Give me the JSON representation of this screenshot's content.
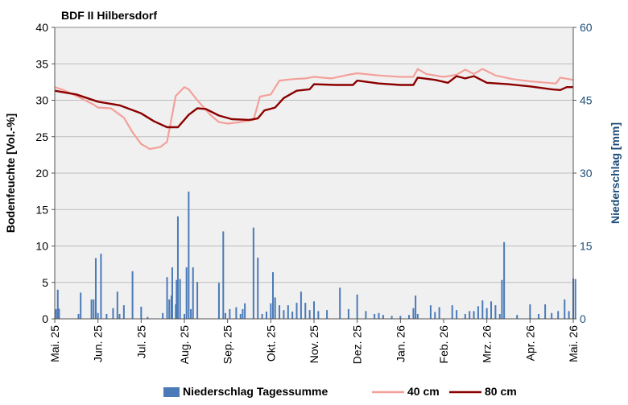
{
  "chart_data": {
    "type": "line",
    "title": "BDF II Hilbersdorf",
    "ylabel_left": "Bodenfeuchte [Vol.-%]",
    "ylabel_right": "Niederschlag [mm]",
    "ylim_left": [
      0,
      40
    ],
    "ylim_right": [
      0,
      60
    ],
    "yticks_left": [
      "0",
      "5",
      "10",
      "15",
      "20",
      "25",
      "30",
      "35",
      "40"
    ],
    "yticks_right": [
      "0",
      "15",
      "30",
      "45",
      "60"
    ],
    "grid": "horizontal",
    "legend_position": "bottom",
    "x_ticks": [
      "Mai. 25",
      "Jun. 25",
      "Jul. 25",
      "Aug. 25",
      "Sep. 25",
      "Okt. 25",
      "Nov. 25",
      "Dez. 25",
      "Jan. 26",
      "Feb. 26",
      "Mrz. 26",
      "Apr. 26",
      "Mai. 26"
    ],
    "series": [
      {
        "name": "40 cm",
        "axis": "left",
        "color": "#f4a09a",
        "points": [
          [
            0,
            31.8
          ],
          [
            0.2,
            31.4
          ],
          [
            0.5,
            30.6
          ],
          [
            0.9,
            29.4
          ],
          [
            1.0,
            29.0
          ],
          [
            1.3,
            28.9
          ],
          [
            1.6,
            27.6
          ],
          [
            1.8,
            25.6
          ],
          [
            2.0,
            24.0
          ],
          [
            2.2,
            23.3
          ],
          [
            2.45,
            23.6
          ],
          [
            2.6,
            24.3
          ],
          [
            2.8,
            30.6
          ],
          [
            3.0,
            31.8
          ],
          [
            3.1,
            31.5
          ],
          [
            3.3,
            30.0
          ],
          [
            3.6,
            28.0
          ],
          [
            3.8,
            27.0
          ],
          [
            4.0,
            26.8
          ],
          [
            4.3,
            27.0
          ],
          [
            4.6,
            27.3
          ],
          [
            4.75,
            30.5
          ],
          [
            5.0,
            30.8
          ],
          [
            5.2,
            32.7
          ],
          [
            5.5,
            32.9
          ],
          [
            5.8,
            33.0
          ],
          [
            6.0,
            33.2
          ],
          [
            6.4,
            33.0
          ],
          [
            6.8,
            33.5
          ],
          [
            7.0,
            33.7
          ],
          [
            7.5,
            33.4
          ],
          [
            8.0,
            33.2
          ],
          [
            8.3,
            33.2
          ],
          [
            8.4,
            34.3
          ],
          [
            8.6,
            33.6
          ],
          [
            9.0,
            33.2
          ],
          [
            9.3,
            33.5
          ],
          [
            9.5,
            34.2
          ],
          [
            9.7,
            33.6
          ],
          [
            9.9,
            34.3
          ],
          [
            10.2,
            33.4
          ],
          [
            10.6,
            32.9
          ],
          [
            11.0,
            32.6
          ],
          [
            11.6,
            32.3
          ],
          [
            11.7,
            33.1
          ],
          [
            12,
            32.8
          ]
        ]
      },
      {
        "name": "80 cm",
        "axis": "left",
        "color": "#8b0000",
        "points": [
          [
            0,
            31.3
          ],
          [
            0.5,
            30.8
          ],
          [
            1.0,
            29.8
          ],
          [
            1.5,
            29.3
          ],
          [
            2.0,
            28.2
          ],
          [
            2.3,
            27.1
          ],
          [
            2.6,
            26.3
          ],
          [
            2.85,
            26.3
          ],
          [
            3.1,
            28.0
          ],
          [
            3.3,
            28.9
          ],
          [
            3.5,
            28.8
          ],
          [
            3.8,
            27.9
          ],
          [
            4.1,
            27.4
          ],
          [
            4.5,
            27.3
          ],
          [
            4.7,
            27.5
          ],
          [
            4.85,
            28.6
          ],
          [
            5.1,
            29.0
          ],
          [
            5.3,
            30.3
          ],
          [
            5.6,
            31.3
          ],
          [
            5.9,
            31.5
          ],
          [
            6.0,
            32.2
          ],
          [
            6.5,
            32.1
          ],
          [
            6.9,
            32.1
          ],
          [
            7.0,
            32.7
          ],
          [
            7.5,
            32.3
          ],
          [
            8.0,
            32.1
          ],
          [
            8.3,
            32.1
          ],
          [
            8.4,
            33.1
          ],
          [
            8.8,
            32.8
          ],
          [
            9.1,
            32.4
          ],
          [
            9.3,
            33.3
          ],
          [
            9.5,
            33.0
          ],
          [
            9.7,
            33.3
          ],
          [
            10.0,
            32.4
          ],
          [
            10.5,
            32.2
          ],
          [
            11.0,
            31.9
          ],
          [
            11.5,
            31.5
          ],
          [
            11.7,
            31.4
          ],
          [
            11.85,
            31.8
          ],
          [
            12,
            31.8
          ]
        ]
      },
      {
        "name": "Niederschlag Tagessumme",
        "axis": "right",
        "type": "bar",
        "color": "#4a7ab8",
        "points": [
          [
            0.03,
            2.0
          ],
          [
            0.07,
            6.0
          ],
          [
            0.1,
            2.1
          ],
          [
            0.55,
            1.0
          ],
          [
            0.6,
            5.4
          ],
          [
            0.85,
            4.0
          ],
          [
            0.9,
            4.0
          ],
          [
            0.95,
            12.5
          ],
          [
            1.0,
            1.2
          ],
          [
            1.07,
            13.4
          ],
          [
            1.2,
            1.0
          ],
          [
            1.35,
            2.2
          ],
          [
            1.45,
            5.6
          ],
          [
            1.5,
            1.0
          ],
          [
            1.6,
            2.8
          ],
          [
            1.8,
            9.8
          ],
          [
            2.0,
            2.5
          ],
          [
            2.15,
            0.4
          ],
          [
            2.5,
            1.2
          ],
          [
            2.6,
            8.6
          ],
          [
            2.65,
            4.0
          ],
          [
            2.7,
            4.8
          ],
          [
            2.72,
            10.6
          ],
          [
            2.8,
            3.0
          ],
          [
            2.82,
            8.0
          ],
          [
            2.85,
            21.1
          ],
          [
            2.9,
            8.2
          ],
          [
            3.0,
            1.0
          ],
          [
            3.05,
            10.6
          ],
          [
            3.1,
            26.2
          ],
          [
            3.15,
            2.0
          ],
          [
            3.2,
            10.6
          ],
          [
            3.3,
            7.6
          ],
          [
            3.8,
            7.4
          ],
          [
            3.9,
            18.0
          ],
          [
            3.95,
            1.2
          ],
          [
            4.05,
            2.0
          ],
          [
            4.2,
            2.4
          ],
          [
            4.3,
            1.0
          ],
          [
            4.35,
            2.0
          ],
          [
            4.4,
            3.2
          ],
          [
            4.6,
            18.8
          ],
          [
            4.7,
            12.6
          ],
          [
            4.8,
            1.0
          ],
          [
            4.9,
            1.5
          ],
          [
            5.0,
            3.2
          ],
          [
            5.05,
            9.6
          ],
          [
            5.1,
            4.4
          ],
          [
            5.2,
            2.8
          ],
          [
            5.3,
            1.8
          ],
          [
            5.4,
            2.8
          ],
          [
            5.5,
            1.5
          ],
          [
            5.6,
            3.3
          ],
          [
            5.7,
            5.6
          ],
          [
            5.8,
            3.3
          ],
          [
            5.9,
            1.8
          ],
          [
            6.0,
            3.6
          ],
          [
            6.1,
            1.6
          ],
          [
            6.3,
            1.8
          ],
          [
            6.6,
            6.4
          ],
          [
            6.8,
            2.0
          ],
          [
            7.0,
            5.0
          ],
          [
            7.2,
            1.6
          ],
          [
            7.4,
            1.0
          ],
          [
            7.5,
            1.2
          ],
          [
            7.6,
            0.8
          ],
          [
            7.8,
            0.6
          ],
          [
            8.0,
            0.6
          ],
          [
            8.2,
            0.8
          ],
          [
            8.3,
            2.2
          ],
          [
            8.35,
            4.8
          ],
          [
            8.4,
            1.0
          ],
          [
            8.7,
            2.8
          ],
          [
            8.8,
            1.4
          ],
          [
            8.9,
            2.4
          ],
          [
            9.2,
            2.8
          ],
          [
            9.3,
            1.8
          ],
          [
            9.5,
            1.0
          ],
          [
            9.6,
            1.6
          ],
          [
            9.7,
            1.6
          ],
          [
            9.8,
            2.6
          ],
          [
            9.9,
            3.8
          ],
          [
            10.0,
            2.2
          ],
          [
            10.1,
            3.6
          ],
          [
            10.2,
            2.8
          ],
          [
            10.3,
            1.0
          ],
          [
            10.35,
            8.0
          ],
          [
            10.4,
            15.8
          ],
          [
            10.7,
            0.8
          ],
          [
            11.0,
            3.0
          ],
          [
            11.2,
            1.0
          ],
          [
            11.35,
            3.0
          ],
          [
            11.5,
            1.2
          ],
          [
            11.65,
            1.6
          ],
          [
            11.8,
            4.0
          ],
          [
            11.9,
            1.6
          ],
          [
            12.0,
            8.3
          ],
          [
            12.05,
            8.2
          ]
        ]
      }
    ],
    "legend": [
      {
        "label": "Niederschlag Tagessumme",
        "kind": "bar",
        "color": "#4a7ab8"
      },
      {
        "label": "40 cm",
        "kind": "line",
        "color": "#f4a09a"
      },
      {
        "label": "80 cm",
        "kind": "line",
        "color": "#8b0000"
      }
    ]
  }
}
